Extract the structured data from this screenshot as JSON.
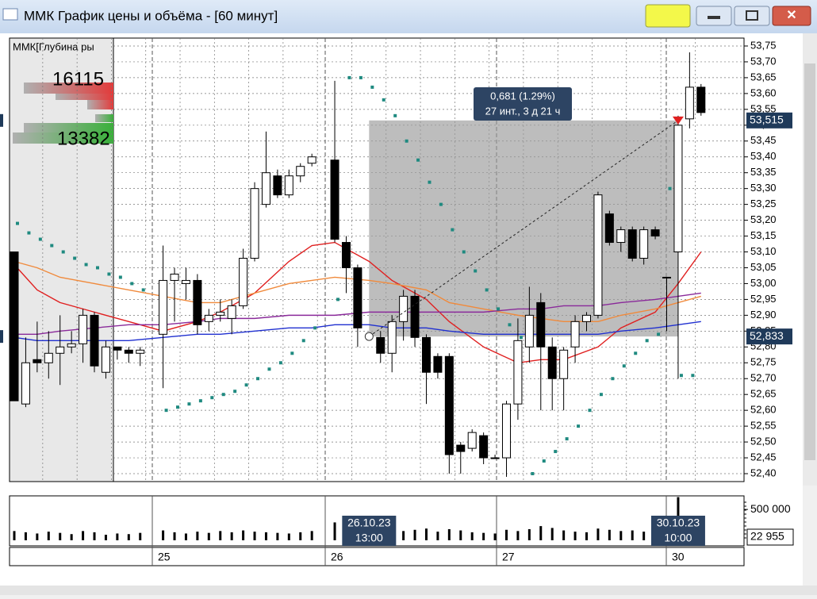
{
  "window": {
    "title": "ММК График цены и объёма - [60 минут]"
  },
  "depth": {
    "label": "ММК[Глубина ры",
    "ask_total": 16115,
    "bid_total": 13382
  },
  "price_chart": {
    "type": "candlestick",
    "ylim": [
      52.375,
      53.775
    ],
    "yticks": [
      {
        "value": 53.75,
        "label": "53,75"
      },
      {
        "value": 53.7,
        "label": "53,70"
      },
      {
        "value": 53.65,
        "label": "53,65"
      },
      {
        "value": 53.6,
        "label": "53,60"
      },
      {
        "value": 53.55,
        "label": "53,55"
      },
      {
        "value": 53.5,
        "label": "53,50"
      },
      {
        "value": 53.45,
        "label": "53,45"
      },
      {
        "value": 53.4,
        "label": "53,40"
      },
      {
        "value": 53.35,
        "label": "53,35"
      },
      {
        "value": 53.3,
        "label": "53,30"
      },
      {
        "value": 53.25,
        "label": "53,25"
      },
      {
        "value": 53.2,
        "label": "53,20"
      },
      {
        "value": 53.15,
        "label": "53,15"
      },
      {
        "value": 53.1,
        "label": "53,10"
      },
      {
        "value": 53.05,
        "label": "53,05"
      },
      {
        "value": 53.0,
        "label": "53,00"
      },
      {
        "value": 52.95,
        "label": "52,95"
      },
      {
        "value": 52.9,
        "label": "52,90"
      },
      {
        "value": 52.85,
        "label": "52,85"
      },
      {
        "value": 52.8,
        "label": "52,80"
      },
      {
        "value": 52.75,
        "label": "52,75"
      },
      {
        "value": 52.7,
        "label": "52,70"
      },
      {
        "value": 52.65,
        "label": "52,65"
      },
      {
        "value": 52.6,
        "label": "52,60"
      },
      {
        "value": 52.55,
        "label": "52,55"
      },
      {
        "value": 52.5,
        "label": "52,50"
      },
      {
        "value": 52.45,
        "label": "52,45"
      },
      {
        "value": 52.4,
        "label": "52,40"
      }
    ],
    "open": [
      53.1,
      52.62,
      52.76,
      52.75,
      52.78,
      52.8,
      52.81,
      52.9,
      52.72,
      52.8,
      52.79,
      52.78,
      null,
      52.84,
      53.01,
      53.0,
      53.01,
      52.88,
      52.9,
      52.89,
      52.93,
      53.08,
      53.25,
      53.34,
      53.28,
      53.34,
      53.38,
      null,
      53.39,
      53.13,
      53.05,
      null,
      52.83,
      52.78,
      52.88,
      52.96,
      52.83,
      52.77,
      52.77,
      52.49,
      52.48,
      52.52,
      52.45,
      52.45,
      52.62,
      52.8,
      52.94,
      52.8,
      52.7,
      52.8,
      52.88,
      52.9,
      53.22,
      53.13,
      53.17,
      53.08,
      53.17,
      53.02,
      53.1,
      53.52,
      53.62
    ],
    "high": [
      53.1,
      52.83,
      52.88,
      52.85,
      52.9,
      52.85,
      52.92,
      52.91,
      52.82,
      52.8,
      52.8,
      52.8,
      null,
      53.12,
      53.05,
      53.05,
      53.03,
      52.92,
      52.95,
      52.95,
      53.11,
      53.32,
      53.48,
      53.36,
      53.36,
      53.38,
      53.41,
      null,
      53.64,
      53.15,
      53.06,
      null,
      52.85,
      52.9,
      52.98,
      52.98,
      52.84,
      52.78,
      52.78,
      52.5,
      52.54,
      52.53,
      52.46,
      52.63,
      52.89,
      52.99,
      52.97,
      52.83,
      52.8,
      52.9,
      52.91,
      53.29,
      53.23,
      53.18,
      53.18,
      53.18,
      53.18,
      53.02,
      53.53,
      53.73,
      53.63
    ],
    "low": [
      52.63,
      52.61,
      52.72,
      52.7,
      52.68,
      52.78,
      52.75,
      52.72,
      52.7,
      52.76,
      52.75,
      52.74,
      null,
      52.67,
      52.88,
      52.95,
      52.84,
      52.85,
      52.88,
      52.84,
      52.92,
      53.07,
      53.24,
      53.27,
      53.27,
      53.32,
      53.37,
      null,
      53.13,
      52.97,
      52.8,
      null,
      52.75,
      52.72,
      52.82,
      52.8,
      52.62,
      52.7,
      52.4,
      52.4,
      52.47,
      52.43,
      52.45,
      52.39,
      52.57,
      52.75,
      52.6,
      52.6,
      52.6,
      52.75,
      52.85,
      52.89,
      53.12,
      53.1,
      53.07,
      53.06,
      53.14,
      52.85,
      52.7,
      53.49,
      53.53
    ],
    "close": [
      52.63,
      52.75,
      52.75,
      52.78,
      52.8,
      52.81,
      52.9,
      52.74,
      52.8,
      52.79,
      52.78,
      52.79,
      null,
      53.01,
      53.03,
      53.01,
      52.87,
      52.9,
      52.91,
      52.93,
      53.08,
      53.3,
      53.35,
      53.28,
      53.34,
      53.37,
      53.4,
      null,
      53.14,
      53.05,
      52.86,
      null,
      52.78,
      52.88,
      52.96,
      52.83,
      52.72,
      52.72,
      52.46,
      52.47,
      52.53,
      52.45,
      52.45,
      52.62,
      52.82,
      52.9,
      52.8,
      52.7,
      52.79,
      52.88,
      52.9,
      53.28,
      53.13,
      53.17,
      53.08,
      53.17,
      53.15,
      53.02,
      53.5,
      53.62,
      53.54
    ],
    "sar": [
      53.19,
      53.16,
      53.14,
      53.12,
      53.1,
      53.08,
      53.06,
      53.05,
      53.03,
      53.02,
      53.0,
      52.98,
      null,
      52.6,
      52.61,
      52.62,
      52.63,
      52.64,
      52.65,
      52.66,
      52.68,
      52.7,
      52.73,
      52.75,
      52.78,
      52.82,
      52.86,
      null,
      52.95,
      53.65,
      53.65,
      53.62,
      53.58,
      53.53,
      53.45,
      53.39,
      53.32,
      53.25,
      53.17,
      53.1,
      53.04,
      52.98,
      52.92,
      52.87,
      52.83,
      52.4,
      52.44,
      52.47,
      52.51,
      52.55,
      52.6,
      52.65,
      52.7,
      52.74,
      52.78,
      52.82,
      52.84,
      53.3,
      52.71,
      52.71,
      null
    ],
    "sar_color": "#1f8a80",
    "moving_averages": [
      {
        "color": "#e02020",
        "x": [
          0,
          2,
          4,
          7,
          10,
          13,
          16,
          18,
          21,
          24,
          26,
          28,
          31,
          33,
          36,
          38,
          41,
          44,
          46,
          48,
          51,
          53,
          56,
          58,
          60
        ],
        "values": [
          53.06,
          52.98,
          52.94,
          52.91,
          52.88,
          52.85,
          52.88,
          52.91,
          52.97,
          53.07,
          53.12,
          53.13,
          53.07,
          53.01,
          52.95,
          52.88,
          52.8,
          52.75,
          52.76,
          52.76,
          52.8,
          52.86,
          52.91,
          53.0,
          53.1
        ]
      },
      {
        "color": "#f08a3c",
        "x": [
          0,
          2,
          4,
          7,
          10,
          13,
          16,
          18,
          21,
          24,
          26,
          28,
          31,
          33,
          36,
          38,
          41,
          44,
          46,
          48,
          51,
          53,
          56,
          58,
          60
        ],
        "values": [
          53.07,
          53.05,
          53.02,
          53.0,
          52.98,
          52.96,
          52.94,
          52.94,
          52.97,
          53.0,
          53.01,
          53.02,
          53.01,
          53.0,
          52.98,
          52.94,
          52.92,
          52.9,
          52.89,
          52.88,
          52.88,
          52.9,
          52.92,
          52.94,
          52.96
        ]
      },
      {
        "color": "#8a2a9a",
        "x": [
          0,
          2,
          4,
          7,
          10,
          13,
          16,
          18,
          21,
          24,
          26,
          28,
          31,
          33,
          36,
          38,
          41,
          44,
          46,
          48,
          51,
          53,
          56,
          58,
          60
        ],
        "values": [
          52.84,
          52.84,
          52.85,
          52.86,
          52.87,
          52.87,
          52.88,
          52.89,
          52.89,
          52.9,
          52.9,
          52.9,
          52.91,
          52.91,
          52.91,
          52.91,
          52.91,
          52.92,
          52.92,
          52.93,
          52.93,
          52.94,
          52.95,
          52.96,
          52.97
        ]
      },
      {
        "color": "#2030d0",
        "x": [
          0,
          2,
          4,
          7,
          10,
          13,
          16,
          18,
          21,
          24,
          26,
          28,
          31,
          33,
          36,
          38,
          41,
          44,
          46,
          48,
          51,
          53,
          56,
          58,
          60
        ],
        "values": [
          52.83,
          52.82,
          52.82,
          52.82,
          52.82,
          52.83,
          52.84,
          52.84,
          52.85,
          52.86,
          52.86,
          52.87,
          52.87,
          52.86,
          52.86,
          52.85,
          52.84,
          52.84,
          52.84,
          52.84,
          52.84,
          52.85,
          52.86,
          52.87,
          52.88
        ]
      }
    ],
    "measure": {
      "start": {
        "value": 52.833,
        "label": "52,833"
      },
      "end": {
        "value": 53.515,
        "label": "53,515"
      },
      "change_label": "0,681 (1.29%)",
      "span_label": "27 инт., 3 д 21 ч"
    }
  },
  "volume_chart": {
    "type": "bar",
    "ylim": [
      0,
      720000
    ],
    "yticks": [
      {
        "value": 500000,
        "label": "500 000"
      }
    ],
    "current": {
      "value": 22955,
      "label": "22 955"
    },
    "values": [
      150000,
      130000,
      110000,
      140000,
      120000,
      100000,
      150000,
      130000,
      90000,
      110000,
      100000,
      120000,
      null,
      160000,
      130000,
      110000,
      140000,
      120000,
      150000,
      130000,
      160000,
      140000,
      130000,
      120000,
      110000,
      130000,
      150000,
      null,
      290000,
      200000,
      170000,
      null,
      180000,
      160000,
      150000,
      170000,
      190000,
      140000,
      180000,
      160000,
      130000,
      120000,
      110000,
      170000,
      150000,
      180000,
      230000,
      200000,
      160000,
      140000,
      130000,
      190000,
      170000,
      150000,
      160000,
      140000,
      150000,
      140000,
      700000,
      180000,
      150000
    ]
  },
  "days": [
    "25",
    "26",
    "27",
    "30"
  ],
  "crosshair_dates": [
    {
      "date": "26.10.23",
      "time": "13:00"
    },
    {
      "date": "30.10.23",
      "time": "10:00"
    }
  ]
}
